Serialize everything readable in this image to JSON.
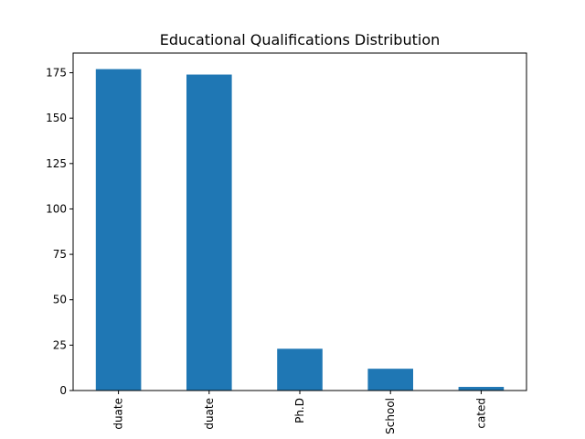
{
  "chart_data": {
    "type": "bar",
    "title": "Educational Qualifications Distribution",
    "xlabel": "",
    "ylabel": "",
    "categories": [
      "duate",
      "duate",
      "Ph.D",
      "School",
      "cated"
    ],
    "values": [
      177,
      174,
      23,
      12,
      2
    ],
    "ylim": [
      0,
      185.85
    ],
    "yticks": [
      0,
      25,
      50,
      75,
      100,
      125,
      150,
      175
    ],
    "grid": false,
    "bar_color": "#1f77b4"
  }
}
